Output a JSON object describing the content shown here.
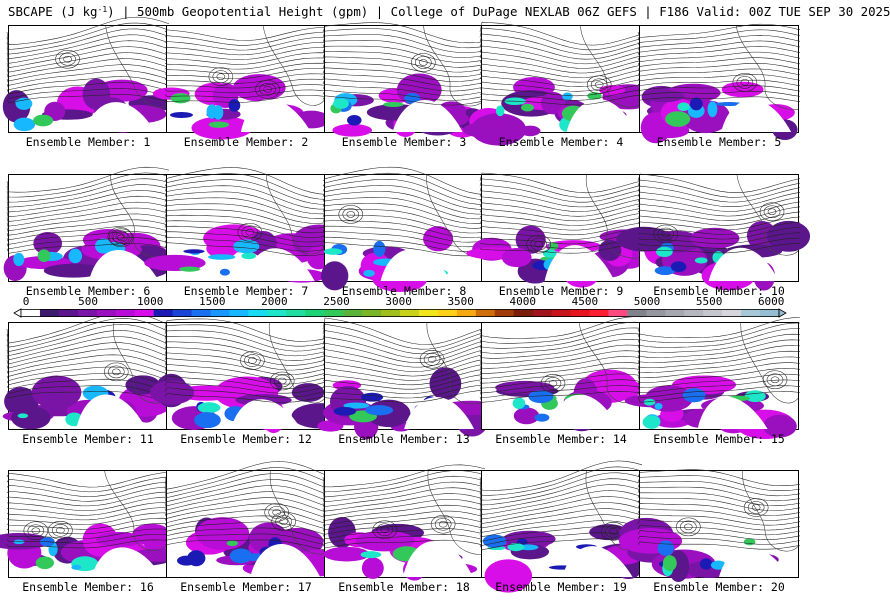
{
  "header": {
    "title_pre": "SBCAPE (J kg",
    "title_sup": "-1",
    "title_post": ") | 500mb Geopotential Height (gpm) | College of DuPage NEXLAB 06Z GEFS | F186 Valid: 00Z TUE SEP 30 2025"
  },
  "colorbar": {
    "ticks": [
      "0",
      "500",
      "1000",
      "1500",
      "2000",
      "2500",
      "3000",
      "3500",
      "4000",
      "4500",
      "5000",
      "5500",
      "6000"
    ],
    "colors": [
      "#ffffff",
      "#3c1a6e",
      "#5a168a",
      "#7a14a6",
      "#9a0fbe",
      "#b80dd6",
      "#d80ee8",
      "#1c1ab4",
      "#1a44d6",
      "#1a6ef0",
      "#1a96ff",
      "#18b8ff",
      "#18dcf2",
      "#1ee6c8",
      "#22dca0",
      "#1ed278",
      "#32c85a",
      "#5ab43c",
      "#7ab428",
      "#a0be1e",
      "#c8d21a",
      "#f0e61a",
      "#ffd21a",
      "#f5aa14",
      "#cd6e0a",
      "#a03c0a",
      "#781e0a",
      "#a0141e",
      "#c8141e",
      "#e6141e",
      "#ff1e32",
      "#ff4b82",
      "#82828c",
      "#96969e",
      "#a6a6ae",
      "#b6b6be",
      "#c6c6ce",
      "#d6d6dc",
      "#a6c8d6",
      "#96bed2"
    ]
  },
  "members": [
    {
      "caption": "Ensemble Member: 1"
    },
    {
      "caption": "Ensemble Member: 2"
    },
    {
      "caption": "Ensemble Member: 3"
    },
    {
      "caption": "Ensemble Member: 4"
    },
    {
      "caption": "Ensemble Member: 5"
    },
    {
      "caption": "Ensemble Member: 6"
    },
    {
      "caption": "Ensemble Member: 7"
    },
    {
      "caption": "Ensemble Member: 8"
    },
    {
      "caption": "Ensemble Member: 9"
    },
    {
      "caption": "Ensemble Member: 10"
    },
    {
      "caption": "Ensemble Member: 11"
    },
    {
      "caption": "Ensemble Member: 12"
    },
    {
      "caption": "Ensemble Member: 13"
    },
    {
      "caption": "Ensemble Member: 14"
    },
    {
      "caption": "Ensemble Member: 15"
    },
    {
      "caption": "Ensemble Member: 16"
    },
    {
      "caption": "Ensemble Member: 17"
    },
    {
      "caption": "Ensemble Member: 18"
    },
    {
      "caption": "Ensemble Member: 19"
    },
    {
      "caption": "Ensemble Member: 20"
    }
  ]
}
